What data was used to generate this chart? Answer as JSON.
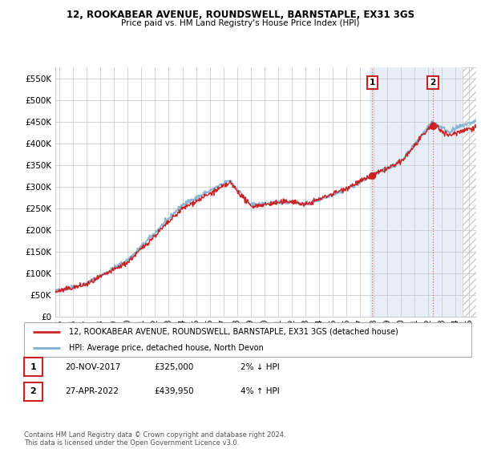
{
  "title_line1": "12, ROOKABEAR AVENUE, ROUNDSWELL, BARNSTAPLE, EX31 3GS",
  "title_line2": "Price paid vs. HM Land Registry's House Price Index (HPI)",
  "ylim": [
    0,
    575000
  ],
  "yticks": [
    0,
    50000,
    100000,
    150000,
    200000,
    250000,
    300000,
    350000,
    400000,
    450000,
    500000,
    550000
  ],
  "ytick_labels": [
    "£0",
    "£50K",
    "£100K",
    "£150K",
    "£200K",
    "£250K",
    "£300K",
    "£350K",
    "£400K",
    "£450K",
    "£500K",
    "£550K"
  ],
  "hpi_color": "#7bafd4",
  "price_color": "#cc2222",
  "marker1_x": 2017.89,
  "marker1_y": 325000,
  "marker1_label": "1",
  "marker2_x": 2022.32,
  "marker2_y": 439950,
  "marker2_label": "2",
  "annotation1": [
    "1",
    "20-NOV-2017",
    "£325,000",
    "2% ↓ HPI"
  ],
  "annotation2": [
    "2",
    "27-APR-2022",
    "£439,950",
    "4% ↑ HPI"
  ],
  "legend_line1": "12, ROOKABEAR AVENUE, ROUNDSWELL, BARNSTAPLE, EX31 3GS (detached house)",
  "legend_line2": "HPI: Average price, detached house, North Devon",
  "footer": "Contains HM Land Registry data © Crown copyright and database right 2024.\nThis data is licensed under the Open Government Licence v3.0.",
  "bg_color": "#ffffff",
  "grid_color": "#cccccc",
  "vline_color": "#dd6666",
  "highlight_color": "#e8eef8",
  "xmin": 1994.7,
  "xmax": 2025.5,
  "xticks": [
    1995,
    1996,
    1997,
    1998,
    1999,
    2000,
    2001,
    2002,
    2003,
    2004,
    2005,
    2006,
    2007,
    2008,
    2009,
    2010,
    2011,
    2012,
    2013,
    2014,
    2015,
    2016,
    2017,
    2018,
    2019,
    2020,
    2021,
    2022,
    2023,
    2024,
    2025
  ]
}
